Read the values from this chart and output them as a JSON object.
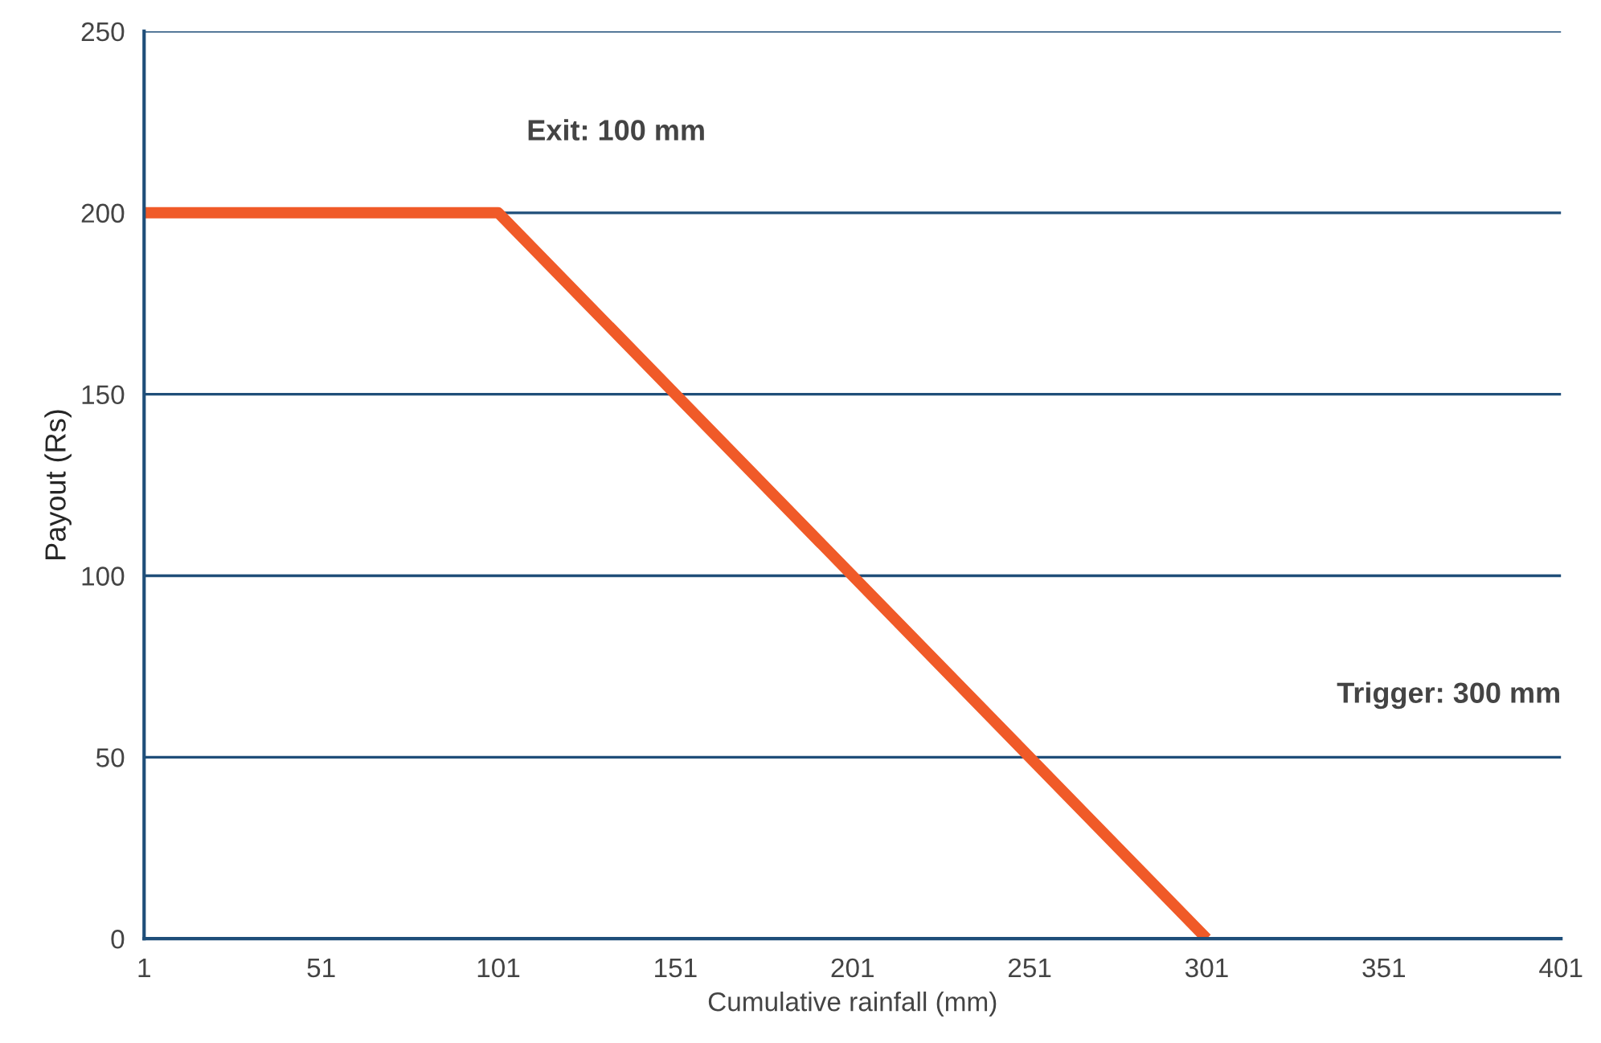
{
  "chart_data": {
    "type": "line",
    "xlabel": "Cumulative rainfall (mm)",
    "ylabel": "Payout (Rs)",
    "x": [
      1,
      101,
      301
    ],
    "series": [
      {
        "color": "#f05a28",
        "values": [
          200,
          200,
          0
        ]
      }
    ],
    "xlim": [
      1,
      401
    ],
    "xticks": [
      1,
      51,
      101,
      151,
      201,
      251,
      301,
      351,
      401
    ],
    "ylim": [
      0,
      250
    ],
    "yticks": [
      0,
      50,
      100,
      150,
      200,
      250
    ],
    "grid": "y",
    "line_style": "solid",
    "marker": "none",
    "annotations": [
      "Exit: 100 mm",
      "Trigger: 300 mm"
    ]
  }
}
